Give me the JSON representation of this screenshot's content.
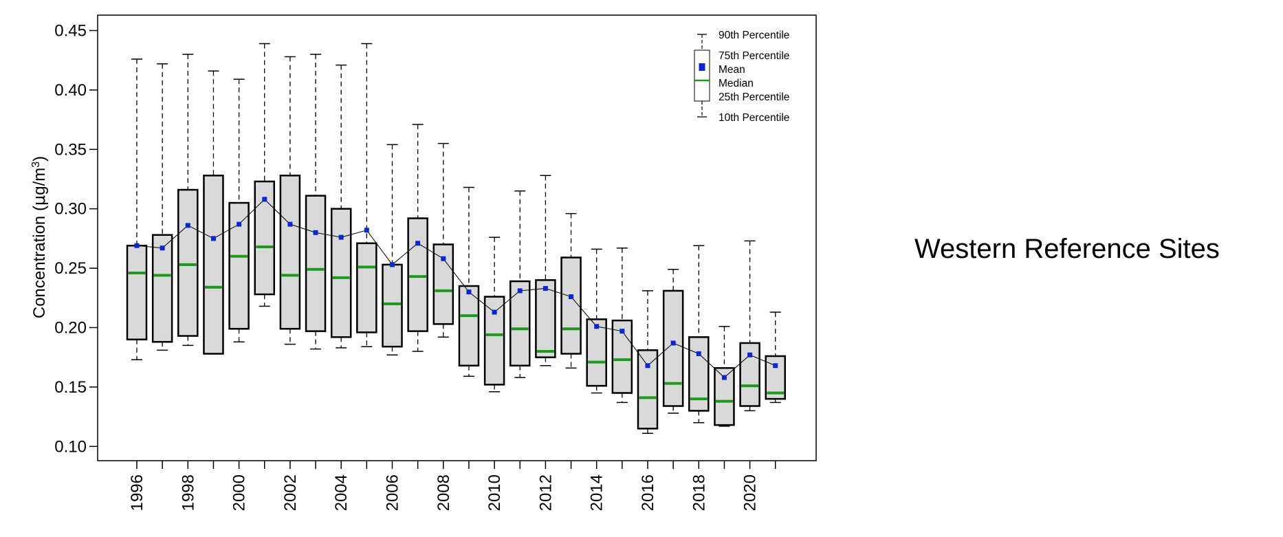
{
  "chart_data": {
    "type": "boxplot",
    "title": "Western Reference Sites",
    "ylabel_main": "Concentration (",
    "ylabel_mu": "μ",
    "ylabel_unit": "g/m",
    "ylabel_sup": "3",
    "ylabel_close": ")",
    "xlabel": "",
    "ylim": [
      0.088,
      0.463
    ],
    "yticks": [
      "0.10",
      "0.15",
      "0.20",
      "0.25",
      "0.30",
      "0.35",
      "0.40",
      "0.45"
    ],
    "x": [
      1996,
      1997,
      1998,
      1999,
      2000,
      2001,
      2002,
      2003,
      2004,
      2005,
      2006,
      2007,
      2008,
      2009,
      2010,
      2011,
      2012,
      2013,
      2014,
      2015,
      2016,
      2017,
      2018,
      2019,
      2020,
      2021
    ],
    "xtick_labels": [
      "1996",
      "1998",
      "2000",
      "2002",
      "2004",
      "2006",
      "2008",
      "2010",
      "2012",
      "2014",
      "2016",
      "2018",
      "2020"
    ],
    "p10": [
      0.173,
      0.181,
      0.185,
      0.178,
      0.188,
      0.218,
      0.186,
      0.182,
      0.183,
      0.184,
      0.177,
      0.18,
      0.192,
      0.159,
      0.146,
      0.158,
      0.168,
      0.166,
      0.145,
      0.137,
      0.111,
      0.128,
      0.12,
      0.117,
      0.13,
      0.137
    ],
    "q1": [
      0.19,
      0.188,
      0.193,
      0.178,
      0.199,
      0.228,
      0.199,
      0.197,
      0.192,
      0.196,
      0.184,
      0.197,
      0.203,
      0.168,
      0.152,
      0.168,
      0.175,
      0.178,
      0.151,
      0.145,
      0.115,
      0.134,
      0.13,
      0.118,
      0.134,
      0.14
    ],
    "median": [
      0.246,
      0.244,
      0.253,
      0.234,
      0.26,
      0.268,
      0.244,
      0.249,
      0.242,
      0.251,
      0.22,
      0.243,
      0.231,
      0.21,
      0.194,
      0.199,
      0.18,
      0.199,
      0.171,
      0.173,
      0.141,
      0.153,
      0.14,
      0.138,
      0.151,
      0.145
    ],
    "q3": [
      0.269,
      0.278,
      0.316,
      0.328,
      0.305,
      0.323,
      0.328,
      0.311,
      0.3,
      0.271,
      0.253,
      0.292,
      0.27,
      0.235,
      0.226,
      0.239,
      0.24,
      0.259,
      0.207,
      0.206,
      0.181,
      0.231,
      0.192,
      0.166,
      0.187,
      0.176
    ],
    "p90": [
      0.426,
      0.422,
      0.43,
      0.416,
      0.409,
      0.439,
      0.428,
      0.43,
      0.421,
      0.439,
      0.354,
      0.371,
      0.355,
      0.318,
      0.276,
      0.315,
      0.328,
      0.296,
      0.266,
      0.267,
      0.231,
      0.249,
      0.269,
      0.201,
      0.273,
      0.213
    ],
    "mean": [
      0.269,
      0.267,
      0.286,
      0.275,
      0.287,
      0.308,
      0.287,
      0.28,
      0.276,
      0.282,
      0.253,
      0.271,
      0.258,
      0.23,
      0.213,
      0.231,
      0.233,
      0.226,
      0.201,
      0.197,
      0.168,
      0.187,
      0.178,
      0.158,
      0.177,
      0.168
    ],
    "legend": {
      "p90": "90th Percentile",
      "p75": "75th Percentile",
      "mean": "Mean",
      "median": "Median",
      "p25": "25th Percentile",
      "p10": "10th Percentile"
    },
    "colors": {
      "box_fill": "#d9d9d9",
      "box_stroke": "#000000",
      "median": "#1a9a1a",
      "mean": "#0b26d6",
      "mean_line": "#000000",
      "whisker": "#000000"
    }
  }
}
